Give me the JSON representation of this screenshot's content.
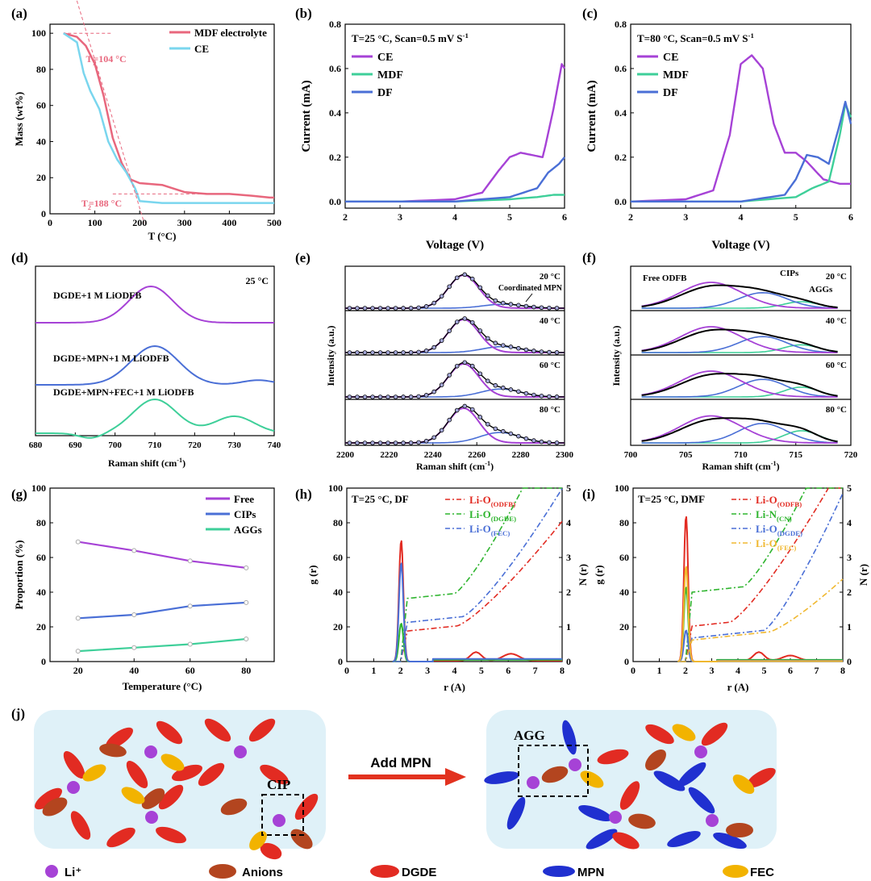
{
  "labels": {
    "a": "(a)",
    "b": "(b)",
    "c": "(c)",
    "d": "(d)",
    "e": "(e)",
    "f": "(f)",
    "g": "(g)",
    "h": "(h)",
    "i": "(i)",
    "j": "(j)"
  },
  "colors": {
    "purple": "#a642d6",
    "green": "#3ecf99",
    "blue": "#4a6fd6",
    "pink": "#e8677d",
    "cyan": "#7ad6ee",
    "red": "#e22b22",
    "brown": "#b3451f",
    "yellow": "#f2b300",
    "mpnblue": "#2030d0",
    "black": "#000000",
    "panel_bg": "#dff1f8",
    "arrow": "#e2321f"
  },
  "panel_a": {
    "xlabel": "T (°C)",
    "ylabel": "Mass (wt%)",
    "xticks": [
      "0",
      "100",
      "200",
      "300",
      "400",
      "500"
    ],
    "yticks": [
      "0",
      "20",
      "40",
      "60",
      "80",
      "100"
    ],
    "legend": [
      "MDF electrolyte",
      "CE"
    ],
    "ann1": "T",
    "ann1_sub": "1",
    "ann1_val": "=104 °C",
    "ann2": "T",
    "ann2_sub": "2",
    "ann2_val": "=188 °C",
    "chart_data": {
      "type": "line",
      "xlim": [
        0,
        500
      ],
      "ylim": [
        0,
        105
      ],
      "series": [
        {
          "name": "MDF electrolyte",
          "x": [
            30,
            60,
            80,
            100,
            120,
            140,
            160,
            180,
            200,
            250,
            300,
            350,
            400,
            450,
            490,
            500
          ],
          "y": [
            100,
            98,
            93,
            83,
            65,
            42,
            28,
            19,
            17,
            16,
            12,
            11,
            11,
            10,
            9,
            9
          ]
        },
        {
          "name": "CE",
          "x": [
            30,
            60,
            75,
            90,
            110,
            130,
            150,
            170,
            190,
            200,
            250,
            300,
            400,
            500
          ],
          "y": [
            100,
            95,
            78,
            68,
            58,
            40,
            30,
            23,
            14,
            7,
            6,
            6,
            6,
            6
          ]
        }
      ]
    }
  },
  "panel_b": {
    "title": "T=25 °C, Scan=0.5 mV S",
    "title_sup": "-1",
    "xlabel": "Voltage (V)",
    "ylabel": "Current (mA)",
    "xticks": [
      "2",
      "3",
      "4",
      "5",
      "6"
    ],
    "yticks": [
      "0.0",
      "0.2",
      "0.4",
      "0.6",
      "0.8"
    ],
    "legend": [
      "CE",
      "MDF",
      "DF"
    ],
    "chart_data": {
      "type": "line",
      "xlim": [
        2,
        6
      ],
      "ylim": [
        -0.03,
        0.8
      ],
      "series": [
        {
          "name": "CE",
          "x": [
            2,
            3,
            4,
            4.5,
            4.8,
            5.0,
            5.2,
            5.4,
            5.6,
            5.65,
            5.8,
            5.95,
            6
          ],
          "y": [
            0,
            0,
            0.01,
            0.04,
            0.14,
            0.2,
            0.22,
            0.21,
            0.2,
            0.25,
            0.42,
            0.62,
            0.6
          ]
        },
        {
          "name": "MDF",
          "x": [
            2,
            4,
            5,
            5.5,
            5.8,
            6
          ],
          "y": [
            0,
            0,
            0.01,
            0.02,
            0.03,
            0.03
          ]
        },
        {
          "name": "DF",
          "x": [
            2,
            4,
            5,
            5.5,
            5.7,
            5.9,
            6
          ],
          "y": [
            0,
            0,
            0.02,
            0.06,
            0.13,
            0.17,
            0.2
          ]
        }
      ]
    }
  },
  "panel_c": {
    "title": "T=80 °C, Scan=0.5 mV S",
    "title_sup": "-1",
    "xlabel": "Voltage (V)",
    "ylabel": "Current (mA)",
    "xticks": [
      "2",
      "3",
      "4",
      "5",
      "6"
    ],
    "yticks": [
      "0.0",
      "0.2",
      "0.4",
      "0.6",
      "0.8"
    ],
    "legend": [
      "CE",
      "MDF",
      "DF"
    ],
    "chart_data": {
      "type": "line",
      "xlim": [
        2,
        6
      ],
      "ylim": [
        -0.03,
        0.8
      ],
      "series": [
        {
          "name": "CE",
          "x": [
            2,
            3,
            3.5,
            3.8,
            4.0,
            4.2,
            4.4,
            4.6,
            4.8,
            5.0,
            5.2,
            5.5,
            5.8,
            6
          ],
          "y": [
            0,
            0.01,
            0.05,
            0.3,
            0.62,
            0.66,
            0.6,
            0.35,
            0.22,
            0.22,
            0.18,
            0.1,
            0.08,
            0.08
          ]
        },
        {
          "name": "MDF",
          "x": [
            2,
            4,
            5,
            5.3,
            5.6,
            5.8,
            5.9,
            6
          ],
          "y": [
            0,
            0,
            0.02,
            0.06,
            0.09,
            0.3,
            0.44,
            0.38
          ]
        },
        {
          "name": "DF",
          "x": [
            2,
            4,
            4.8,
            5.0,
            5.2,
            5.4,
            5.6,
            5.8,
            5.9,
            6
          ],
          "y": [
            0,
            0,
            0.03,
            0.1,
            0.21,
            0.2,
            0.17,
            0.35,
            0.45,
            0.35
          ]
        }
      ]
    }
  },
  "panel_d": {
    "xlabel": "Raman shift (cm",
    "xlabel_sup": "-1",
    "xlabel_end": ")",
    "xticks": [
      "680",
      "690",
      "700",
      "710",
      "720",
      "730",
      "740"
    ],
    "temp": "25 °C",
    "curve_labels": [
      "DGDE+1 M LiODFB",
      "DGDE+MPN+1 M LiODFB",
      "DGDE+MPN+FEC+1 M LiODFB"
    ]
  },
  "panel_e": {
    "xlabel": "Raman shift (cm",
    "xlabel_sup": "-1",
    "xlabel_end": ")",
    "ylabel": "Intensity (a.u.)",
    "xticks": [
      "2200",
      "2220",
      "2240",
      "2260",
      "2280",
      "2300"
    ],
    "temps": [
      "20 °C",
      "40 °C",
      "60 °C",
      "80 °C"
    ],
    "annotation": "Coordinated MPN"
  },
  "panel_f": {
    "xlabel": "Raman shift (cm",
    "xlabel_sup": "-1",
    "xlabel_end": ")",
    "ylabel": "Intensity (a.u.)",
    "xticks": [
      "700",
      "705",
      "710",
      "715",
      "720"
    ],
    "temps": [
      "20 °C",
      "40 °C",
      "60 °C",
      "80 °C"
    ],
    "annotations": [
      "Free ODFB",
      "CIPs",
      "AGGs"
    ]
  },
  "panel_g": {
    "xlabel": "Temperature (°C)",
    "ylabel": "Proportion (%)",
    "xticks": [
      "20",
      "40",
      "60",
      "80"
    ],
    "yticks": [
      "0",
      "20",
      "40",
      "60",
      "80",
      "100"
    ],
    "legend": [
      "Free",
      "CIPs",
      "AGGs"
    ],
    "chart_data": {
      "type": "line",
      "categories": [
        20,
        40,
        60,
        80
      ],
      "ylim": [
        0,
        100
      ],
      "series": [
        {
          "name": "Free",
          "values": [
            69,
            64,
            58,
            54
          ]
        },
        {
          "name": "CIPs",
          "values": [
            25,
            27,
            32,
            34
          ]
        },
        {
          "name": "AGGs",
          "values": [
            6,
            8,
            10,
            13
          ]
        }
      ]
    }
  },
  "panel_h": {
    "title": "T=25 °C, DF",
    "xlabel": "r (A)",
    "ylabel": "g (r)",
    "ylabel2": "N (r)",
    "xticks": [
      "0",
      "1",
      "2",
      "3",
      "4",
      "5",
      "6",
      "7",
      "8"
    ],
    "yticks": [
      "0",
      "20",
      "40",
      "60",
      "80",
      "100"
    ],
    "y2ticks": [
      "0",
      "1",
      "2",
      "3",
      "4",
      "5"
    ],
    "legend": [
      {
        "t": "Li-O",
        "sub": "(ODFB)"
      },
      {
        "t": "Li-O",
        "sub": "(DGDE)"
      },
      {
        "t": "Li-O",
        "sub": "(FEC)"
      }
    ]
  },
  "panel_i": {
    "title": "T=25 °C, DMF",
    "xlabel": "r (A)",
    "ylabel": "g (r)",
    "ylabel2": "N (r)",
    "xticks": [
      "0",
      "1",
      "2",
      "3",
      "4",
      "5",
      "6",
      "7",
      "8"
    ],
    "yticks": [
      "0",
      "20",
      "40",
      "60",
      "80",
      "100"
    ],
    "y2ticks": [
      "0",
      "1",
      "2",
      "3",
      "4",
      "5"
    ],
    "legend": [
      {
        "t": "Li-O",
        "sub": "(ODFB)"
      },
      {
        "t": "Li-N",
        "sub": "(CN)"
      },
      {
        "t": "Li-O",
        "sub": "(DGDE)"
      },
      {
        "t": "Li-O",
        "sub": "(FEC)"
      }
    ]
  },
  "panel_j": {
    "cip": "CIP",
    "agg": "AGG",
    "arrow": "Add MPN",
    "legend": [
      "Li⁺",
      "Anions",
      "DGDE",
      "MPN",
      "FEC"
    ]
  }
}
